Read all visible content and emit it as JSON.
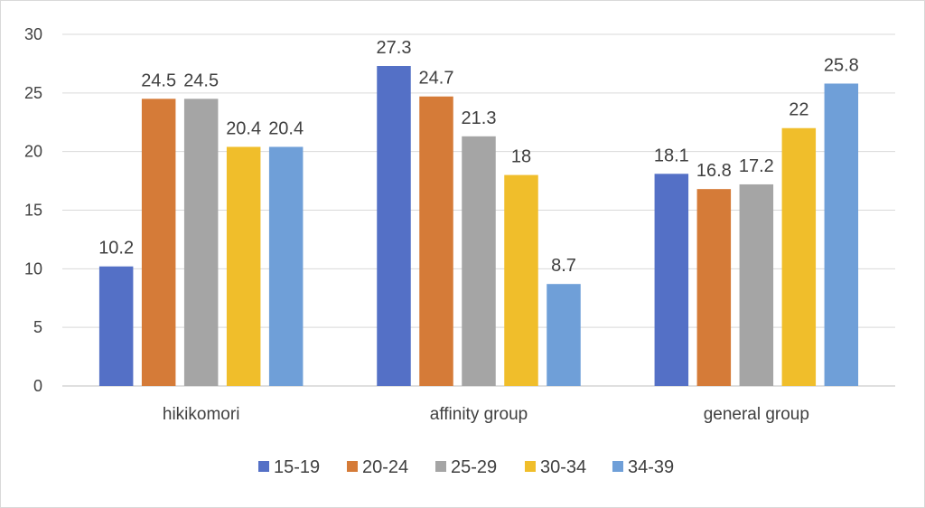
{
  "chart_data": {
    "type": "bar",
    "title": "",
    "xlabel": "",
    "ylabel": "",
    "categories": [
      "hikikomori",
      "affinity group",
      "general group"
    ],
    "ylim": [
      0,
      30
    ],
    "yticks": [
      0,
      5,
      10,
      15,
      20,
      25,
      30
    ],
    "grid": true,
    "legend_position": "bottom",
    "series": [
      {
        "name": "15-19",
        "color": "#5470c6",
        "values": [
          10.2,
          27.3,
          18.1
        ],
        "labels": [
          "10.2",
          "27.3",
          "18.1"
        ]
      },
      {
        "name": "20-24",
        "color": "#d57b38",
        "values": [
          24.5,
          24.7,
          16.8
        ],
        "labels": [
          "24.5",
          "24.7",
          "16.8"
        ]
      },
      {
        "name": "25-29",
        "color": "#a5a5a5",
        "values": [
          24.5,
          21.3,
          17.2
        ],
        "labels": [
          "24.5",
          "21.3",
          "17.2"
        ]
      },
      {
        "name": "30-34",
        "color": "#f0be2b",
        "values": [
          20.4,
          18,
          22
        ],
        "labels": [
          "20.4",
          "18",
          "22"
        ]
      },
      {
        "name": "34-39",
        "color": "#6f9fd8",
        "values": [
          20.4,
          8.7,
          25.8
        ],
        "labels": [
          "20.4",
          "8.7",
          "25.8"
        ]
      }
    ]
  }
}
